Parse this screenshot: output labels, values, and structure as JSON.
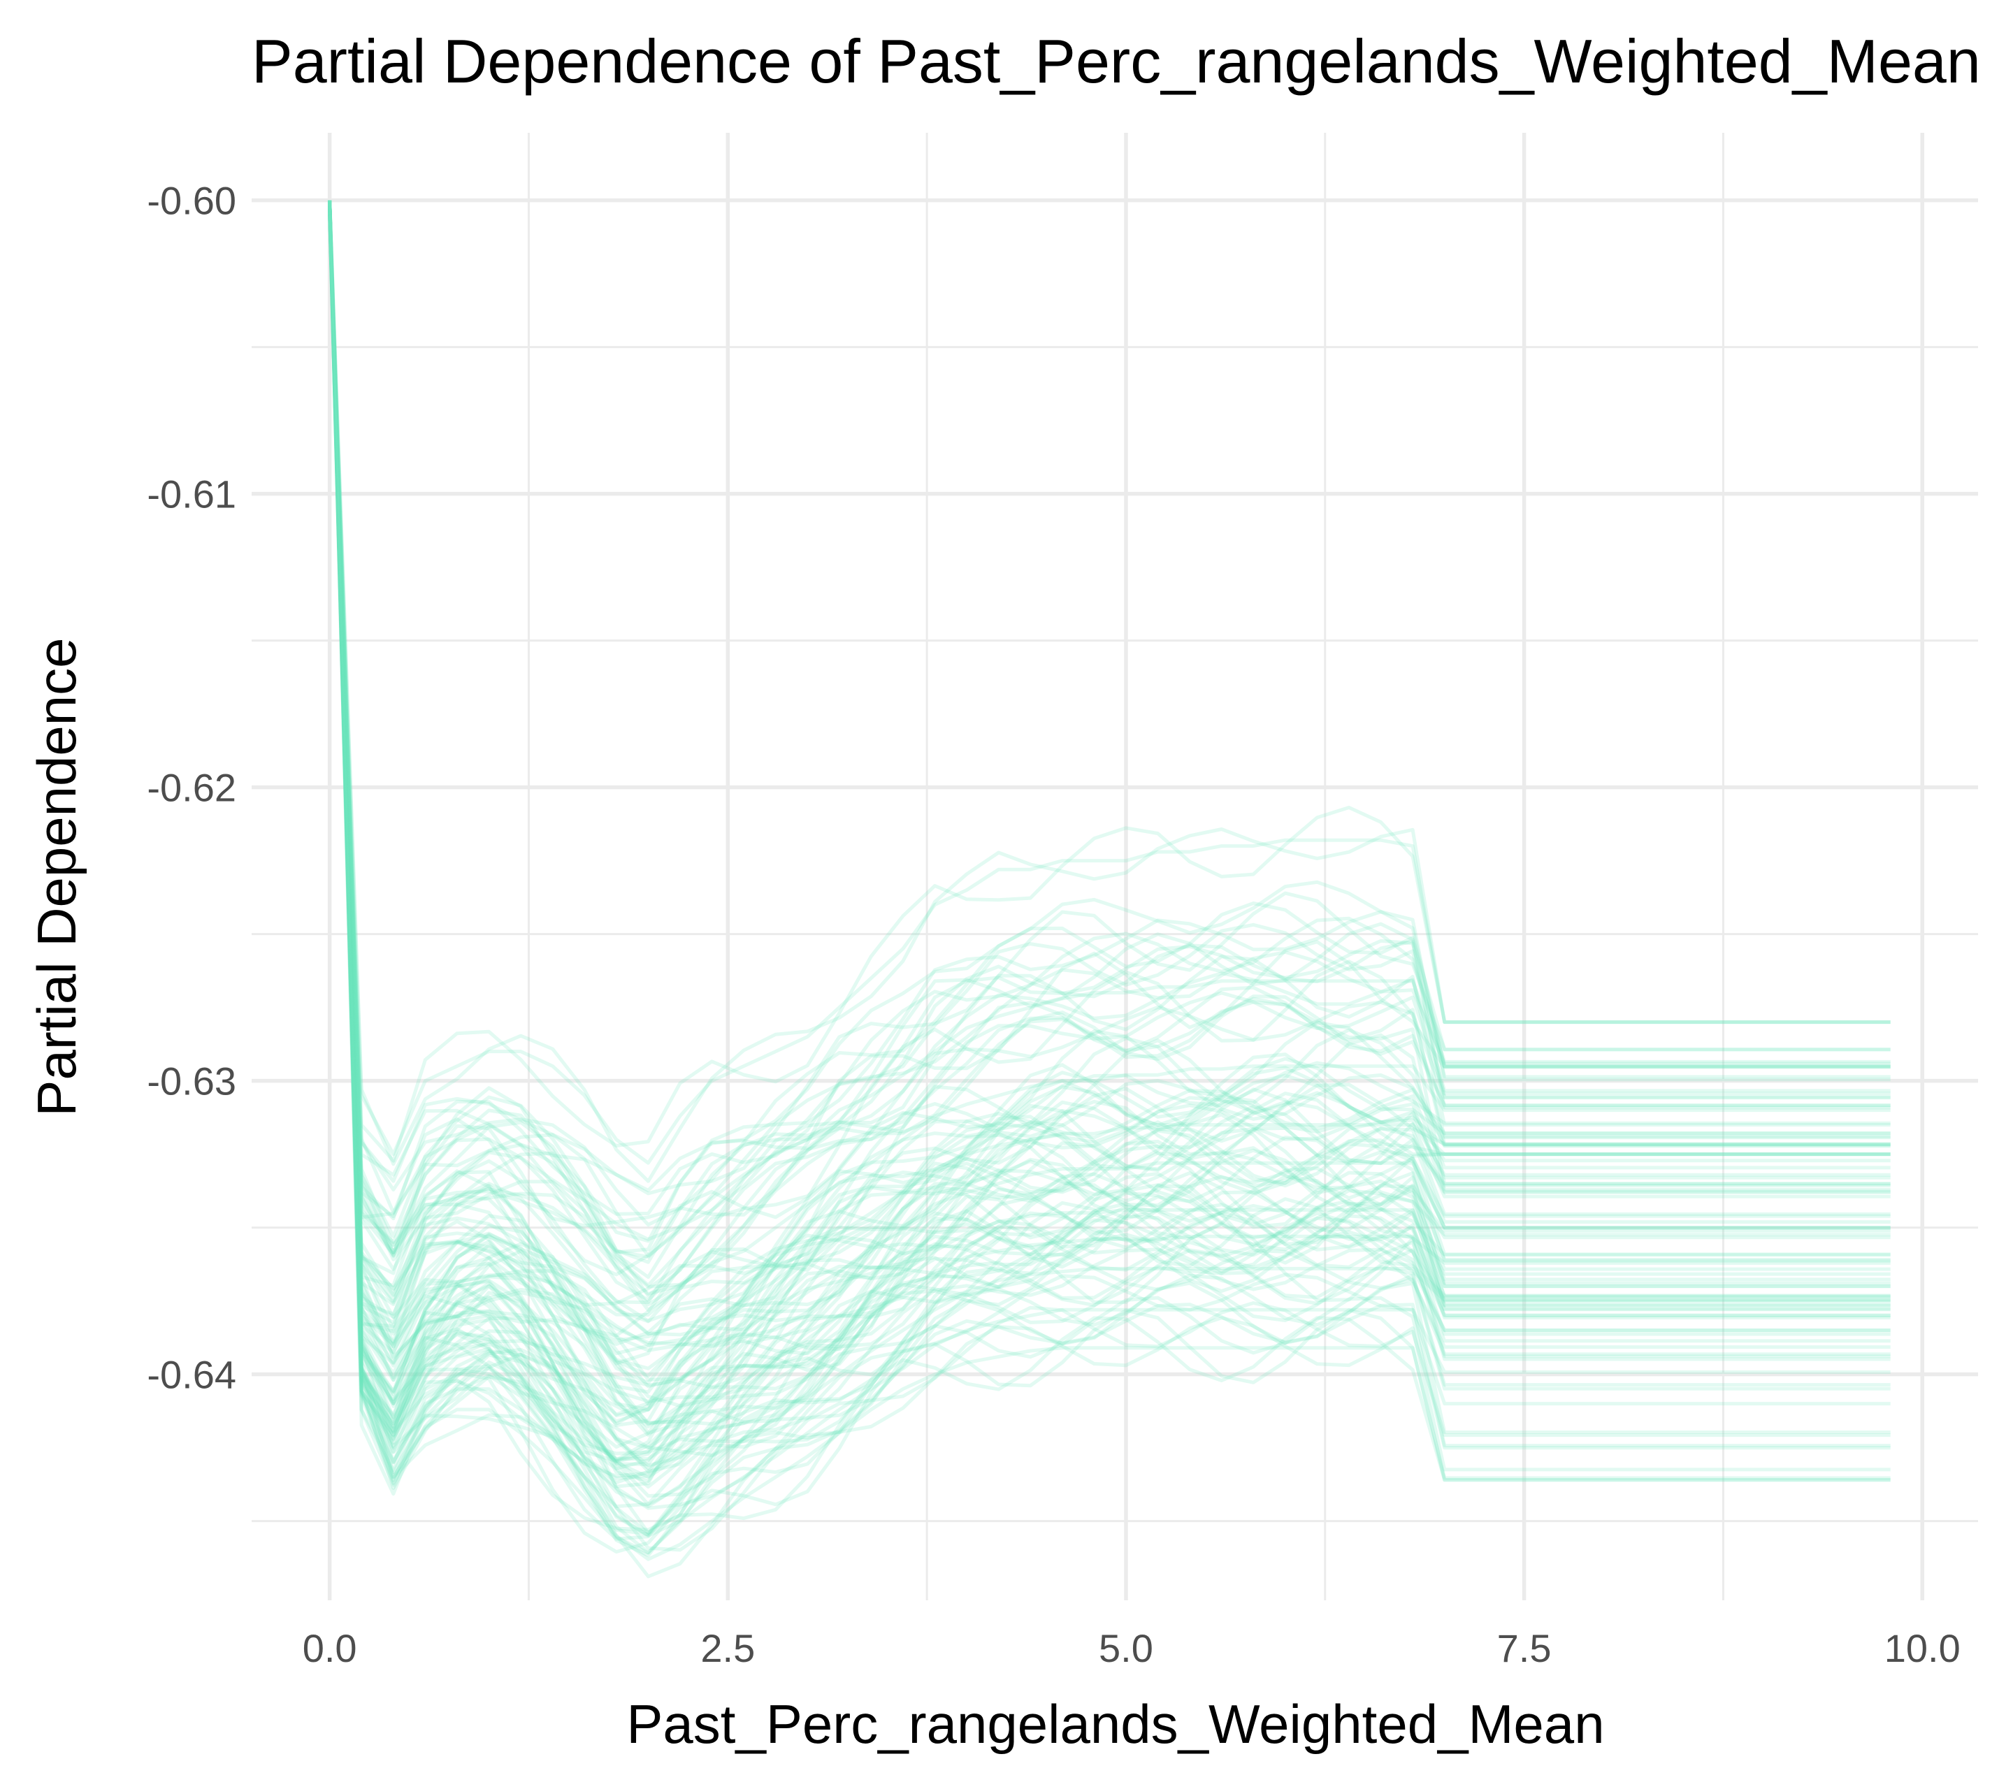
{
  "chart_data": {
    "type": "line",
    "title": "Partial Dependence of Past_Perc_rangelands_Weighted_Mean",
    "xlabel": "Past_Perc_rangelands_Weighted_Mean",
    "ylabel": "Partial Dependence",
    "xlim": [
      -0.49,
      10.35
    ],
    "ylim": [
      -0.6477,
      -0.5977
    ],
    "x_ticks": [
      0.0,
      2.5,
      5.0,
      7.5,
      10.0
    ],
    "x_tick_labels": [
      "0.0",
      "2.5",
      "5.0",
      "7.5",
      "10.0"
    ],
    "y_ticks": [
      -0.6,
      -0.61,
      -0.62,
      -0.63,
      -0.64
    ],
    "y_tick_labels": [
      "-0.60",
      "-0.61",
      "-0.62",
      "-0.63",
      "-0.64"
    ],
    "grid": true,
    "legend": "none",
    "line_color": "#6ee8c0",
    "line_alpha": 0.2,
    "x": [
      0.0,
      0.2,
      0.4,
      0.6,
      0.8,
      1.0,
      1.2,
      1.4,
      1.6,
      1.8,
      2.0,
      2.2,
      2.4,
      2.6,
      2.8,
      3.0,
      3.2,
      3.4,
      3.6,
      3.8,
      4.0,
      4.2,
      4.4,
      4.6,
      4.8,
      5.0,
      5.2,
      5.4,
      5.6,
      5.8,
      6.0,
      6.2,
      6.4,
      6.6,
      6.8,
      7.0,
      7.2,
      7.4,
      7.6,
      7.8,
      8.0,
      8.2,
      8.4,
      8.6,
      8.8,
      9.0,
      9.2,
      9.4,
      9.6,
      9.8
    ],
    "series_count": 100,
    "series_summary": {
      "start_value_range": [
        -0.6015,
        -0.6
      ],
      "end_value_range": [
        -0.6436,
        -0.628
      ],
      "max_end_value": -0.628,
      "min_end_value": -0.6436,
      "dip_minimum_near_x_2.1": -0.6463,
      "plateau_from_x": 6.9
    },
    "series": [
      {
        "values": [
          -0.6,
          -0.6305,
          -0.6325,
          -0.63,
          -0.6295,
          -0.629,
          -0.629,
          -0.6295,
          -0.6305,
          -0.632,
          -0.6328,
          -0.6312,
          -0.63,
          -0.6295,
          -0.629,
          -0.6285,
          -0.6275,
          -0.6265,
          -0.6255,
          -0.624,
          -0.6235,
          -0.6228,
          -0.6228,
          -0.6225,
          -0.6225,
          -0.6225,
          -0.6222,
          -0.6222,
          -0.622,
          -0.622,
          -0.6218,
          -0.6218,
          -0.6218,
          -0.6218,
          -0.622,
          -0.628,
          -0.628,
          -0.628,
          -0.628,
          -0.628,
          -0.628,
          -0.628,
          -0.628,
          -0.628,
          -0.628,
          -0.628,
          -0.628,
          -0.628,
          -0.628,
          -0.628
        ]
      },
      {
        "values": [
          -0.6005,
          -0.6345,
          -0.6355,
          -0.6332,
          -0.632,
          -0.6315,
          -0.6322,
          -0.6335,
          -0.6348,
          -0.6358,
          -0.636,
          -0.635,
          -0.634,
          -0.6332,
          -0.6325,
          -0.632,
          -0.631,
          -0.6305,
          -0.6298,
          -0.629,
          -0.6282,
          -0.6278,
          -0.6275,
          -0.6272,
          -0.627,
          -0.627,
          -0.6268,
          -0.6268,
          -0.6266,
          -0.6266,
          -0.6266,
          -0.6266,
          -0.6266,
          -0.6266,
          -0.6266,
          -0.6295,
          -0.6295,
          -0.6295,
          -0.6295,
          -0.6295,
          -0.6295,
          -0.6295,
          -0.6295,
          -0.6295,
          -0.6295,
          -0.6295,
          -0.6295,
          -0.6295,
          -0.6295,
          -0.6295
        ]
      },
      {
        "values": [
          -0.6,
          -0.636,
          -0.6375,
          -0.635,
          -0.634,
          -0.6335,
          -0.634,
          -0.6352,
          -0.6365,
          -0.6378,
          -0.6382,
          -0.637,
          -0.6362,
          -0.6358,
          -0.635,
          -0.6342,
          -0.6335,
          -0.6328,
          -0.632,
          -0.6312,
          -0.6308,
          -0.6305,
          -0.6302,
          -0.63,
          -0.63,
          -0.6298,
          -0.6298,
          -0.6296,
          -0.6296,
          -0.6295,
          -0.6295,
          -0.6295,
          -0.6295,
          -0.6295,
          -0.6295,
          -0.631,
          -0.631,
          -0.631,
          -0.631,
          -0.631,
          -0.631,
          -0.631,
          -0.631,
          -0.631,
          -0.631,
          -0.631,
          -0.631,
          -0.631,
          -0.631,
          -0.631
        ]
      },
      {
        "values": [
          -0.6003,
          -0.638,
          -0.639,
          -0.6365,
          -0.6355,
          -0.6352,
          -0.6358,
          -0.637,
          -0.6382,
          -0.6395,
          -0.6398,
          -0.639,
          -0.6382,
          -0.6375,
          -0.6368,
          -0.636,
          -0.6352,
          -0.6345,
          -0.6338,
          -0.633,
          -0.6325,
          -0.6322,
          -0.632,
          -0.6318,
          -0.6318,
          -0.6316,
          -0.6316,
          -0.6315,
          -0.6315,
          -0.6315,
          -0.6315,
          -0.6315,
          -0.6315,
          -0.6315,
          -0.6315,
          -0.6325,
          -0.6325,
          -0.6325,
          -0.6325,
          -0.6325,
          -0.6325,
          -0.6325,
          -0.6325,
          -0.6325,
          -0.6325,
          -0.6325,
          -0.6325,
          -0.6325,
          -0.6325,
          -0.6325
        ]
      },
      {
        "values": [
          -0.6,
          -0.6385,
          -0.6402,
          -0.638,
          -0.637,
          -0.6368,
          -0.6375,
          -0.6385,
          -0.6398,
          -0.641,
          -0.6412,
          -0.6402,
          -0.6395,
          -0.6388,
          -0.638,
          -0.6372,
          -0.6365,
          -0.6358,
          -0.635,
          -0.6342,
          -0.6338,
          -0.6335,
          -0.6332,
          -0.633,
          -0.633,
          -0.633,
          -0.6328,
          -0.6328,
          -0.6328,
          -0.6328,
          -0.6328,
          -0.6328,
          -0.6328,
          -0.6328,
          -0.6328,
          -0.635,
          -0.635,
          -0.635,
          -0.635,
          -0.635,
          -0.635,
          -0.635,
          -0.635,
          -0.635,
          -0.635,
          -0.635,
          -0.635,
          -0.635,
          -0.635,
          -0.635
        ]
      },
      {
        "values": [
          -0.6006,
          -0.6395,
          -0.641,
          -0.639,
          -0.6382,
          -0.638,
          -0.6388,
          -0.6398,
          -0.641,
          -0.6422,
          -0.6425,
          -0.6418,
          -0.641,
          -0.6402,
          -0.6395,
          -0.6388,
          -0.638,
          -0.6372,
          -0.6365,
          -0.6358,
          -0.6352,
          -0.6348,
          -0.6346,
          -0.6345,
          -0.6345,
          -0.6344,
          -0.6344,
          -0.6344,
          -0.6344,
          -0.6344,
          -0.6344,
          -0.6344,
          -0.6344,
          -0.6344,
          -0.6344,
          -0.637,
          -0.637,
          -0.637,
          -0.637,
          -0.637,
          -0.637,
          -0.637,
          -0.637,
          -0.637,
          -0.637,
          -0.637,
          -0.637,
          -0.637,
          -0.637,
          -0.637
        ]
      },
      {
        "values": [
          -0.6,
          -0.6398,
          -0.6418,
          -0.6398,
          -0.639,
          -0.6388,
          -0.6395,
          -0.6405,
          -0.6418,
          -0.643,
          -0.6435,
          -0.6428,
          -0.6418,
          -0.641,
          -0.6402,
          -0.6395,
          -0.6388,
          -0.638,
          -0.6372,
          -0.6365,
          -0.636,
          -0.6358,
          -0.6356,
          -0.6355,
          -0.6354,
          -0.6354,
          -0.6354,
          -0.6353,
          -0.6353,
          -0.6353,
          -0.6353,
          -0.6353,
          -0.6353,
          -0.6353,
          -0.6353,
          -0.638,
          -0.638,
          -0.638,
          -0.638,
          -0.638,
          -0.638,
          -0.638,
          -0.638,
          -0.638,
          -0.638,
          -0.638,
          -0.638,
          -0.638,
          -0.638,
          -0.638
        ]
      },
      {
        "values": [
          -0.6004,
          -0.64,
          -0.6425,
          -0.6405,
          -0.64,
          -0.6398,
          -0.6405,
          -0.6415,
          -0.6428,
          -0.644,
          -0.6445,
          -0.6438,
          -0.643,
          -0.6422,
          -0.6415,
          -0.6408,
          -0.64,
          -0.6392,
          -0.6385,
          -0.6378,
          -0.6372,
          -0.6368,
          -0.6366,
          -0.6365,
          -0.6364,
          -0.6364,
          -0.6364,
          -0.6364,
          -0.6364,
          -0.6364,
          -0.6364,
          -0.6364,
          -0.6364,
          -0.6364,
          -0.6364,
          -0.6385,
          -0.6385,
          -0.6385,
          -0.6385,
          -0.6385,
          -0.6385,
          -0.6385,
          -0.6385,
          -0.6385,
          -0.6385,
          -0.6385,
          -0.6385,
          -0.6385,
          -0.6385,
          -0.6385
        ]
      },
      {
        "values": [
          -0.6,
          -0.6402,
          -0.643,
          -0.641,
          -0.6405,
          -0.6405,
          -0.6412,
          -0.6422,
          -0.6435,
          -0.6448,
          -0.6455,
          -0.645,
          -0.6442,
          -0.6435,
          -0.6428,
          -0.642,
          -0.6412,
          -0.6405,
          -0.6398,
          -0.639,
          -0.6385,
          -0.6382,
          -0.638,
          -0.6378,
          -0.6378,
          -0.6378,
          -0.6378,
          -0.6378,
          -0.6378,
          -0.6378,
          -0.6378,
          -0.6378,
          -0.6378,
          -0.6378,
          -0.6378,
          -0.641,
          -0.641,
          -0.641,
          -0.641,
          -0.641,
          -0.641,
          -0.641,
          -0.641,
          -0.641,
          -0.641,
          -0.641,
          -0.641,
          -0.641,
          -0.641,
          -0.641
        ]
      },
      {
        "values": [
          -0.6002,
          -0.6405,
          -0.6435,
          -0.6418,
          -0.6412,
          -0.6412,
          -0.642,
          -0.643,
          -0.6442,
          -0.6455,
          -0.6463,
          -0.6458,
          -0.645,
          -0.6442,
          -0.6435,
          -0.6428,
          -0.642,
          -0.6412,
          -0.6405,
          -0.64,
          -0.6396,
          -0.6394,
          -0.6392,
          -0.6391,
          -0.6391,
          -0.6391,
          -0.6391,
          -0.6391,
          -0.6391,
          -0.6391,
          -0.6391,
          -0.6391,
          -0.6391,
          -0.6391,
          -0.6391,
          -0.6436,
          -0.6436,
          -0.6436,
          -0.6436,
          -0.6436,
          -0.6436,
          -0.6436,
          -0.6436,
          -0.6436,
          -0.6436,
          -0.6436,
          -0.6436,
          -0.6436,
          -0.6436,
          -0.6436
        ]
      }
    ]
  }
}
